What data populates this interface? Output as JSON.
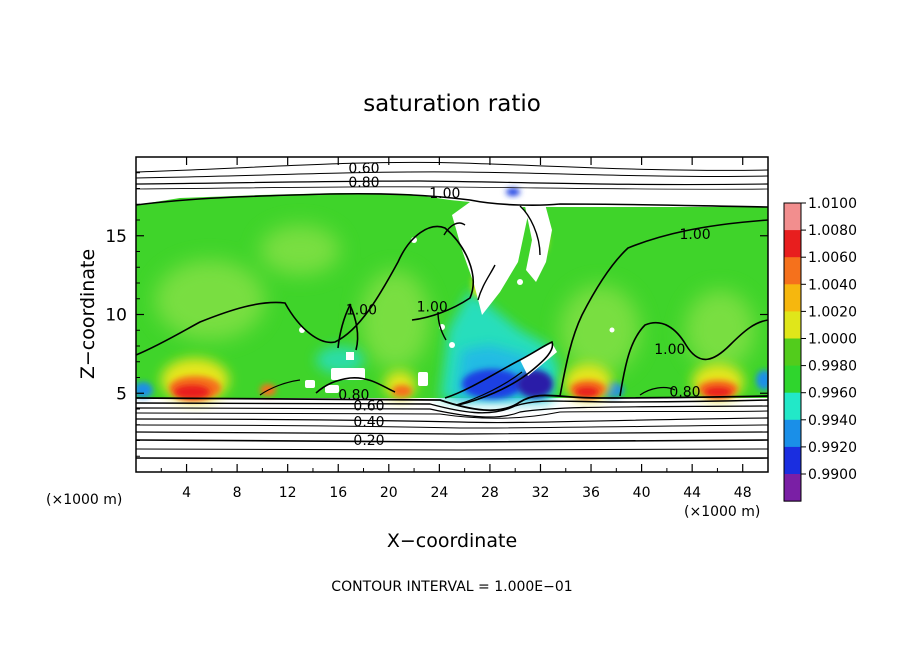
{
  "chart_data": {
    "type": "heatmap",
    "title": "saturation ratio",
    "xlabel": "X−coordinate",
    "ylabel": "Z−coordinate",
    "x_unit": "(×1000 m)",
    "z_unit": "(×1000 m)",
    "xlim": [
      0,
      50
    ],
    "ylim": [
      0,
      20
    ],
    "x_ticks": [
      4,
      8,
      12,
      16,
      20,
      24,
      28,
      32,
      36,
      40,
      44,
      48
    ],
    "y_ticks": [
      5,
      10,
      15
    ],
    "footer": "CONTOUR INTERVAL = 1.000E−01",
    "colorbar": {
      "placement": "right",
      "labels": [
        "1.0100",
        "1.0080",
        "1.0060",
        "1.0040",
        "1.0020",
        "1.0000",
        "0.9980",
        "0.9960",
        "0.9940",
        "0.9920",
        "0.9900"
      ],
      "colors": [
        "#f28e8e",
        "#e81e1e",
        "#f5711c",
        "#f6b70e",
        "#e0e61a",
        "#52cc1c",
        "#2fd52d",
        "#22e8c8",
        "#1a8fe8",
        "#1a2ee0",
        "#7a1fa5"
      ]
    },
    "contour_labels": [
      {
        "text": "0.60",
        "x": 16.8,
        "z": 19.0
      },
      {
        "text": "0.80",
        "x": 16.8,
        "z": 18.1
      },
      {
        "text": "1.00",
        "x": 23.2,
        "z": 17.4
      },
      {
        "text": "1.00",
        "x": 43.0,
        "z": 14.8
      },
      {
        "text": "1.00",
        "x": 16.6,
        "z": 10.0
      },
      {
        "text": "1.00",
        "x": 22.2,
        "z": 10.2
      },
      {
        "text": "1.00",
        "x": 41.0,
        "z": 7.5
      },
      {
        "text": "0.80",
        "x": 16.0,
        "z": 4.6
      },
      {
        "text": "0.60",
        "x": 17.2,
        "z": 3.9
      },
      {
        "text": "0.40",
        "x": 17.2,
        "z": 2.9
      },
      {
        "text": "0.20",
        "x": 17.2,
        "z": 1.7
      },
      {
        "text": "0.80",
        "x": 42.2,
        "z": 4.8
      }
    ]
  },
  "colors": {
    "green": "#3fd42a",
    "light_green": "#8de24a",
    "cyan": "#26dfc4",
    "blue": "#1c3fe3",
    "dark_blue": "#2a1fa8",
    "red": "#e81e1e",
    "orange": "#f5711c",
    "yellow": "#e6e61a"
  }
}
